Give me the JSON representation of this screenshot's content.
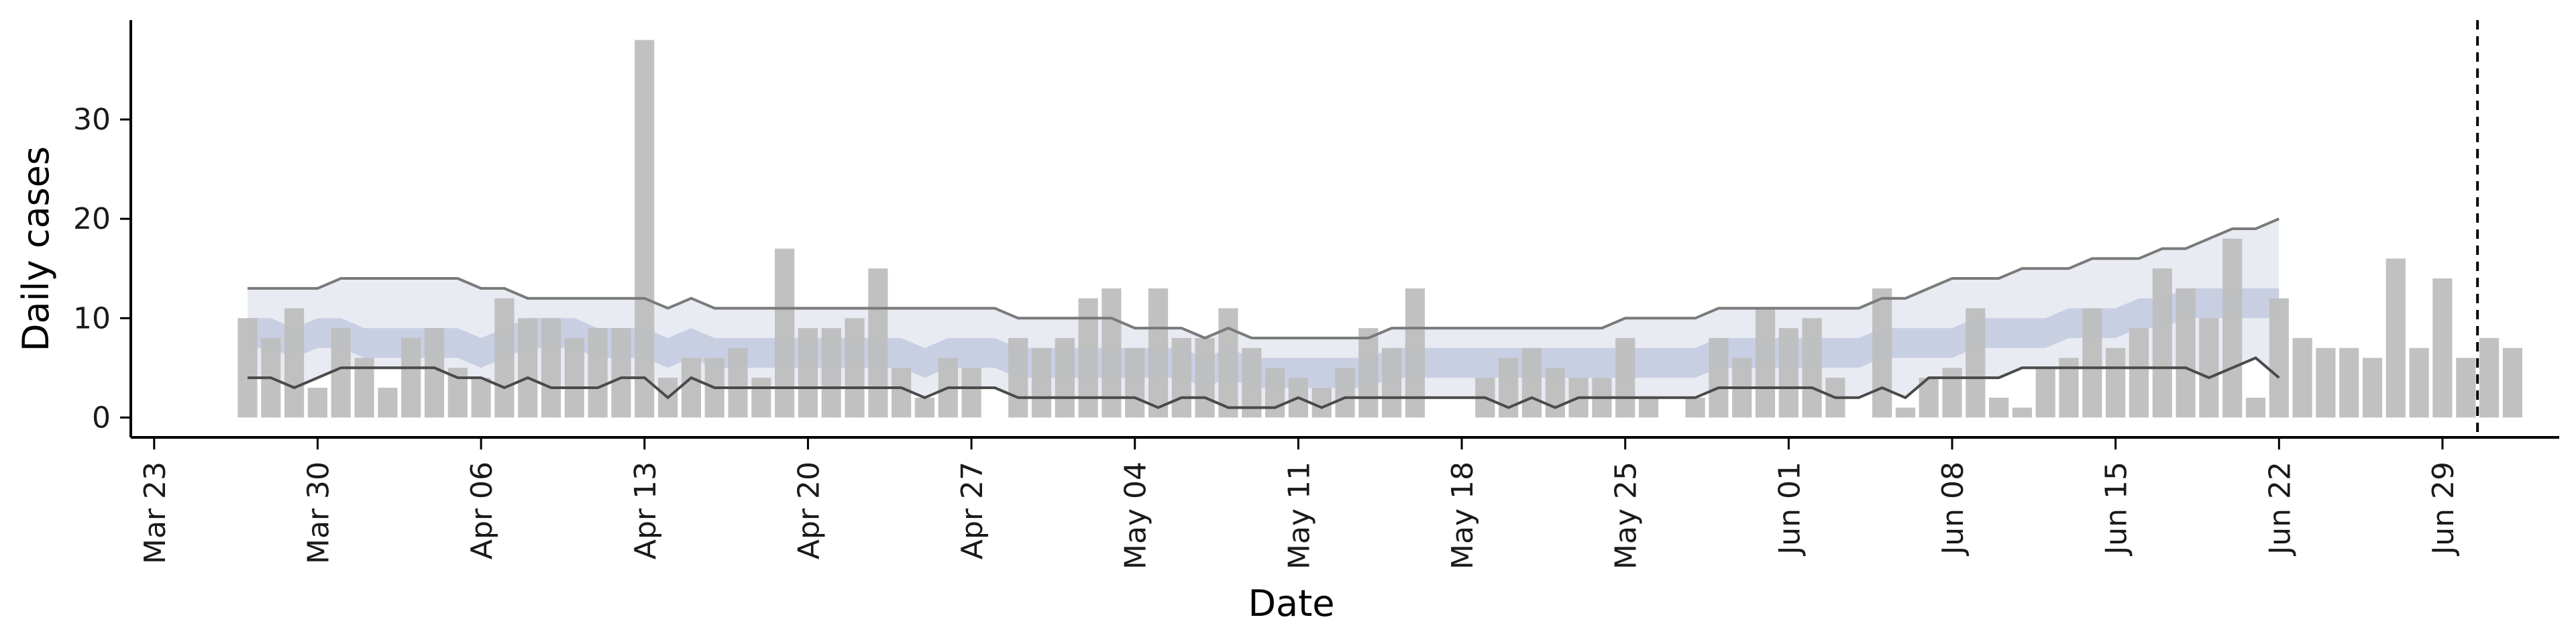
{
  "chart_data": {
    "type": "bar",
    "title": "",
    "xlabel": "Date",
    "ylabel": "Daily cases",
    "x_tick_labels": [
      "Mar 23",
      "Mar 30",
      "Apr 06",
      "Apr 13",
      "Apr 20",
      "Apr 27",
      "May 04",
      "May 11",
      "May 18",
      "May 25",
      "Jun 01",
      "Jun 08",
      "Jun 15",
      "Jun 22",
      "Jun 29"
    ],
    "y_ticks": [
      0,
      10,
      20,
      30
    ],
    "ylim": [
      -2,
      40
    ],
    "x_range": [
      "2020-03-22",
      "2020-07-04"
    ],
    "start_date": "2020-03-27",
    "end_date": "2020-06-30",
    "daily_cases": [
      10,
      8,
      11,
      3,
      9,
      6,
      3,
      8,
      9,
      5,
      4,
      12,
      10,
      10,
      8,
      9,
      9,
      38,
      4,
      6,
      6,
      7,
      4,
      17,
      9,
      9,
      10,
      15,
      5,
      2,
      6,
      5,
      0,
      8,
      7,
      8,
      12,
      13,
      7,
      13,
      8,
      8,
      11,
      7,
      5,
      4,
      3,
      5,
      9,
      7,
      13,
      0,
      0,
      4,
      6,
      7,
      5,
      4,
      4,
      8,
      2,
      0,
      2,
      8,
      6,
      11,
      9,
      10,
      4,
      0,
      13,
      1,
      4,
      5,
      11,
      2,
      1,
      5,
      6,
      11,
      7,
      9,
      15,
      13,
      10,
      18,
      2,
      12,
      8,
      7,
      7,
      6,
      16,
      7,
      14,
      6,
      8,
      7
    ],
    "bands": {
      "start_date": "2020-03-27",
      "outer_upper": [
        13,
        13,
        13,
        13,
        14,
        14,
        14,
        14,
        14,
        14,
        13,
        13,
        12,
        12,
        12,
        12,
        12,
        12,
        11,
        12,
        11,
        11,
        11,
        11,
        11,
        11,
        11,
        11,
        11,
        11,
        11,
        11,
        11,
        10,
        10,
        10,
        10,
        10,
        9,
        9,
        9,
        8,
        9,
        8,
        8,
        8,
        8,
        8,
        8,
        9,
        9,
        9,
        9,
        9,
        9,
        9,
        9,
        9,
        9,
        10,
        10,
        10,
        10,
        11,
        11,
        11,
        11,
        11,
        11,
        11,
        12,
        12,
        13,
        14,
        14,
        14,
        15,
        15,
        15,
        16,
        16,
        16,
        17,
        17,
        18,
        19,
        19,
        20
      ],
      "outer_lower": [
        4,
        4,
        3,
        4,
        5,
        5,
        5,
        5,
        5,
        4,
        4,
        3,
        4,
        3,
        3,
        3,
        4,
        4,
        2,
        4,
        3,
        3,
        3,
        3,
        3,
        3,
        3,
        3,
        3,
        2,
        3,
        3,
        3,
        2,
        2,
        2,
        2,
        2,
        2,
        1,
        2,
        2,
        1,
        1,
        1,
        2,
        1,
        2,
        2,
        2,
        2,
        2,
        2,
        2,
        1,
        2,
        1,
        2,
        2,
        2,
        2,
        2,
        2,
        3,
        3,
        3,
        3,
        3,
        2,
        2,
        3,
        2,
        4,
        4,
        4,
        4,
        5,
        5,
        5,
        5,
        5,
        5,
        5,
        5,
        4,
        5,
        6,
        4
      ],
      "inner_upper": [
        10,
        10,
        9,
        10,
        10,
        9,
        9,
        9,
        9,
        9,
        8,
        9,
        10,
        10,
        10,
        9,
        9,
        9,
        8,
        9,
        8,
        8,
        8,
        8,
        8,
        8,
        8,
        8,
        8,
        7,
        8,
        8,
        8,
        7,
        7,
        7,
        7,
        7,
        7,
        7,
        7,
        6,
        7,
        6,
        6,
        6,
        6,
        6,
        6,
        7,
        7,
        7,
        7,
        7,
        7,
        7,
        7,
        7,
        7,
        7,
        7,
        7,
        7,
        8,
        8,
        8,
        8,
        8,
        8,
        8,
        9,
        9,
        9,
        9,
        10,
        10,
        10,
        10,
        11,
        11,
        11,
        12,
        12,
        13,
        13,
        13,
        13,
        13
      ],
      "inner_lower": [
        7,
        7,
        6,
        7,
        7,
        6,
        6,
        6,
        6,
        6,
        5,
        6,
        7,
        7,
        7,
        6,
        6,
        6,
        5,
        6,
        5,
        5,
        5,
        5,
        5,
        5,
        5,
        5,
        5,
        4,
        5,
        5,
        5,
        4,
        4,
        4,
        4,
        4,
        4,
        4,
        4,
        3,
        4,
        3,
        3,
        3,
        3,
        3,
        3,
        4,
        4,
        4,
        4,
        4,
        4,
        4,
        4,
        4,
        4,
        4,
        4,
        4,
        4,
        5,
        5,
        5,
        5,
        5,
        5,
        5,
        6,
        6,
        6,
        6,
        7,
        7,
        7,
        7,
        8,
        8,
        8,
        9,
        9,
        10,
        10,
        10,
        10,
        10
      ],
      "median_start": [
        10,
        10,
        9,
        10,
        10,
        9,
        9,
        9,
        9,
        9,
        8,
        9,
        10,
        10,
        10,
        9,
        9,
        9,
        8,
        9,
        8,
        8,
        8,
        8,
        8,
        8,
        8,
        8,
        8,
        7,
        8,
        8,
        8,
        7,
        7,
        7,
        7,
        7,
        7,
        7,
        7,
        6,
        7,
        6,
        6,
        6,
        6,
        6,
        6,
        7,
        7,
        7,
        7,
        7,
        7,
        7,
        7,
        7,
        7,
        7,
        7,
        7,
        7,
        8,
        8,
        8,
        8,
        8,
        8,
        8,
        9,
        9,
        9,
        9,
        10,
        10,
        10,
        10,
        11,
        11,
        11,
        12,
        12,
        13,
        13,
        13,
        13,
        13
      ]
    },
    "vline_date": "2020-06-30",
    "vline_style": "dashed",
    "grid": false,
    "colors": {
      "bars": "#bebebe",
      "band_outer": "#e7e9f2",
      "band_inner": "#c3cadf",
      "band_edge": "#7a7a7a",
      "axis": "#000000"
    }
  }
}
